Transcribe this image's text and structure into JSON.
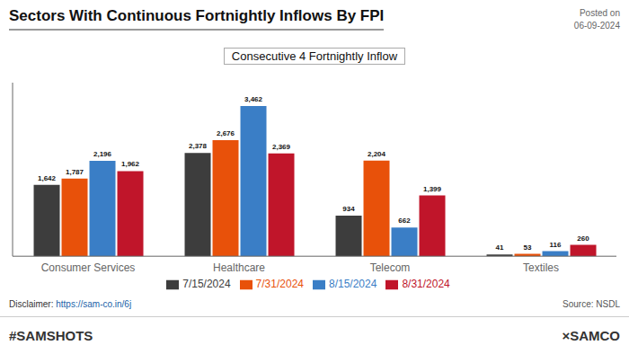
{
  "chart_data": {
    "type": "bar",
    "title": "Sectors With Continuous Fortnightly Inflows By FPI",
    "subtitle": "Consecutive 4 Fortnightly Inflow",
    "annotations": [
      "Posted on\n06-09-2024",
      "Disclaimer: ",
      "https://sam-co.in/6j",
      "Source: NSDL",
      "#SAMSHOTS",
      "×SAMCO"
    ],
    "categories": [
      "Consumer Services",
      "Healthcare",
      "Telecom",
      "Textiles"
    ],
    "series": [
      {
        "name": "7/15/2024",
        "color": "#3d3d3d",
        "values": [
          1642,
          2378,
          934,
          41
        ],
        "value_labels": [
          "1,642",
          "2,378",
          "934",
          "41"
        ]
      },
      {
        "name": "7/31/2024",
        "color": "#e8510a",
        "values": [
          1787,
          2676,
          2204,
          53
        ],
        "value_labels": [
          "1,787",
          "2,676",
          "2,204",
          "53"
        ]
      },
      {
        "name": "8/15/2024",
        "color": "#3a7ec6",
        "values": [
          2196,
          3462,
          662,
          116
        ],
        "value_labels": [
          "2,196",
          "3,462",
          "662",
          "116"
        ]
      },
      {
        "name": "8/31/2024",
        "color": "#c0152a",
        "values": [
          1962,
          2369,
          1399,
          260
        ],
        "value_labels": [
          "1,962",
          "2,369",
          "1,399",
          "260"
        ]
      }
    ],
    "ylim": [
      0,
      4000
    ],
    "grid": false,
    "legend": "bottom",
    "data_labels": true,
    "tick_labels": "x"
  }
}
